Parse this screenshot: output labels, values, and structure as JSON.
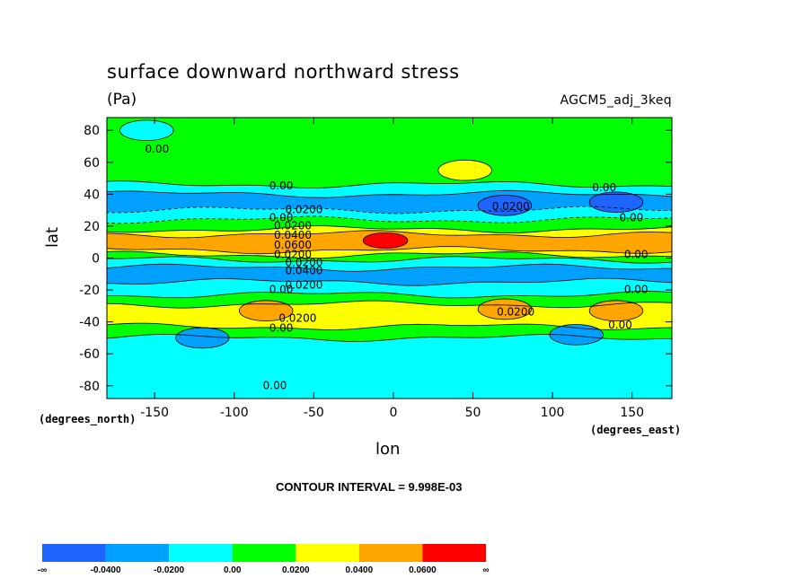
{
  "chart_data": {
    "type": "heatmap",
    "title": "surface downward northward stress",
    "units": "(Pa)",
    "run_id": "AGCM5_adj_3keq",
    "xlabel": "lon",
    "ylabel": "lat",
    "x_unit_label": "(degrees_east)",
    "y_unit_label": "(degrees_north)",
    "xlim": [
      -180,
      175
    ],
    "ylim": [
      -88,
      88
    ],
    "x_ticks": [
      -150,
      -100,
      -50,
      0,
      50,
      100,
      150
    ],
    "y_ticks": [
      80,
      60,
      40,
      20,
      0,
      -20,
      -40,
      -60,
      -80
    ],
    "contour_interval_text": "CONTOUR INTERVAL = 9.998E-03",
    "legend": {
      "labels": [
        "-∞",
        "-0.0400",
        "-0.0200",
        "0.00",
        "0.0200",
        "0.0400",
        "0.0600",
        "∞"
      ],
      "colors": [
        "#1e64ff",
        "#00a0ff",
        "#00ffff",
        "#00ff00",
        "#ffff00",
        "#ffa500",
        "#ff0000"
      ]
    },
    "bands": [
      {
        "lat_max": 88,
        "lat_min": 46,
        "value_range": "0.00 to 0.0200"
      },
      {
        "lat_max": 46,
        "lat_min": 40,
        "value_range": "-0.0200 to 0.00"
      },
      {
        "lat_max": 40,
        "lat_min": 30,
        "value_range": "-0.0400 to -0.0200"
      },
      {
        "lat_max": 30,
        "lat_min": 24,
        "value_range": "-0.0200 to 0.00"
      },
      {
        "lat_max": 24,
        "lat_min": 18,
        "value_range": "0.00 to 0.0200"
      },
      {
        "lat_max": 18,
        "lat_min": 15,
        "value_range": "0.0200 to 0.0400"
      },
      {
        "lat_max": 15,
        "lat_min": 5,
        "value_range": "0.0400 to 0.0600"
      },
      {
        "lat_max": 5,
        "lat_min": 2,
        "value_range": "0.0200 to 0.0400"
      },
      {
        "lat_max": 2,
        "lat_min": -1,
        "value_range": "0.00 to 0.0200"
      },
      {
        "lat_max": -1,
        "lat_min": -6,
        "value_range": "-0.0200 to 0.00"
      },
      {
        "lat_max": -6,
        "lat_min": -15,
        "value_range": "-0.0400 to -0.0200"
      },
      {
        "lat_max": -15,
        "lat_min": -23,
        "value_range": "-0.0200 to 0.00"
      },
      {
        "lat_max": -23,
        "lat_min": -29,
        "value_range": "0.00 to 0.0200"
      },
      {
        "lat_max": -29,
        "lat_min": -43,
        "value_range": "0.0200 to 0.0400"
      },
      {
        "lat_max": -43,
        "lat_min": -50,
        "value_range": "0.00 to 0.0200"
      },
      {
        "lat_max": -50,
        "lat_min": -88,
        "value_range": "-0.0200 to 0.00"
      }
    ],
    "features": [
      {
        "lon": -5,
        "lat": 11,
        "value_range": "0.0600 to ∞"
      },
      {
        "lon": 45,
        "lat": 55,
        "value_range": "0.0200 to 0.0400"
      },
      {
        "lon": -80,
        "lat": -33,
        "value_range": "0.0400 to 0.0600"
      },
      {
        "lon": 70,
        "lat": -32,
        "value_range": "0.0400 to 0.0600"
      },
      {
        "lon": 140,
        "lat": -33,
        "value_range": "0.0400 to 0.0600"
      },
      {
        "lon": -120,
        "lat": -50,
        "value_range": "-0.0400 to -0.0200"
      },
      {
        "lon": 115,
        "lat": -48,
        "value_range": "-0.0400 to -0.0200"
      },
      {
        "lon": 70,
        "lat": 33,
        "value_range": "-0.0600 to -0.0400"
      },
      {
        "lon": 140,
        "lat": 35,
        "value_range": "-0.0600 to -0.0400"
      },
      {
        "lon": -155,
        "lat": 80,
        "value_range": "-0.0200 to 0.00"
      }
    ],
    "contour_labels": [
      {
        "text": "0.00",
        "lon": -156,
        "lat": 66
      },
      {
        "text": "0.00",
        "lon": -78,
        "lat": 43
      },
      {
        "text": "0.0200",
        "lon": -68,
        "lat": 28
      },
      {
        "text": "0.00",
        "lon": -78,
        "lat": 23
      },
      {
        "text": "0.0200",
        "lon": -75,
        "lat": 18
      },
      {
        "text": "0.0400",
        "lon": -75,
        "lat": 12
      },
      {
        "text": "0.0600",
        "lon": -75,
        "lat": 6
      },
      {
        "text": "0.0200",
        "lon": -75,
        "lat": 0
      },
      {
        "text": "0.0200",
        "lon": -68,
        "lat": -5
      },
      {
        "text": "0.0400",
        "lon": -68,
        "lat": -10
      },
      {
        "text": "0.0200",
        "lon": -68,
        "lat": -19
      },
      {
        "text": "0.00",
        "lon": -78,
        "lat": -22
      },
      {
        "text": "0.0200",
        "lon": -72,
        "lat": -40
      },
      {
        "text": "0.00",
        "lon": -78,
        "lat": -46
      },
      {
        "text": "0.0200",
        "lon": 62,
        "lat": 30
      },
      {
        "text": "0.00",
        "lon": 125,
        "lat": 42
      },
      {
        "text": "0.00",
        "lon": 142,
        "lat": 23
      },
      {
        "text": "0.00",
        "lon": 145,
        "lat": 0
      },
      {
        "text": "0.00",
        "lon": 145,
        "lat": -22
      },
      {
        "text": "0.0200",
        "lon": 65,
        "lat": -36
      },
      {
        "text": "0.00",
        "lon": 135,
        "lat": -44
      },
      {
        "text": "0.00",
        "lon": -82,
        "lat": -82
      }
    ]
  }
}
